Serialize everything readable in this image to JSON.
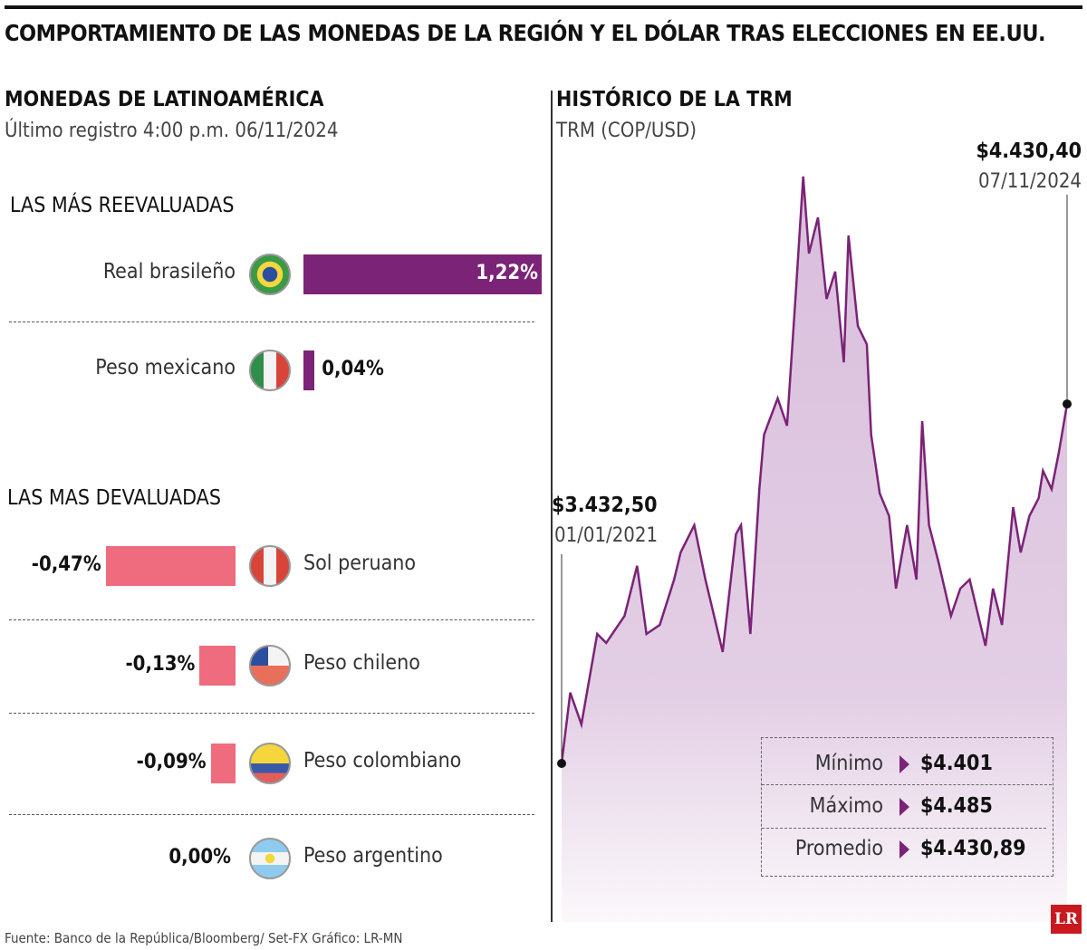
{
  "title": "COMPORTAMIENTO DE LAS MONEDAS DE LA REGIÓN Y EL DÓLAR TRAS ELECCIONES EN EE.UU.",
  "left": {
    "heading": "MONEDAS DE LATINOAMÉRICA",
    "subtitle": "Último registro 4:00 p.m. 06/11/2024",
    "section_up": "LAS MÁS REEVALUADAS",
    "section_down": "LAS MAS DEVALUADAS"
  },
  "colors": {
    "positive": "#7b2377",
    "negative": "#ee6c7e",
    "line": "#7b2377",
    "area": "#dcc2df"
  },
  "chart_data": [
    {
      "type": "bar",
      "orientation": "horizontal",
      "categories": [
        "Real brasileño",
        "Peso mexicano",
        "Sol peruano",
        "Peso chileno",
        "Peso colombiano",
        "Peso argentino"
      ],
      "values": [
        1.22,
        0.04,
        -0.47,
        -0.13,
        -0.09,
        0.0
      ],
      "labels": [
        "1,22%",
        "0,04%",
        "-0,47%",
        "-0,13%",
        "-0,09%",
        "0,00%"
      ],
      "flags": [
        "brazil",
        "mexico",
        "peru",
        "chile",
        "colombia",
        "argentina"
      ]
    },
    {
      "type": "area",
      "title": "HISTÓRICO DE LA TRM",
      "subtitle": "TRM (COP/USD)",
      "grid": false,
      "start": {
        "value": "$3.432,50",
        "date": "01/01/2021"
      },
      "end": {
        "value": "$4.430,40",
        "date": "07/11/2024"
      },
      "x": [
        "2021-01-01",
        "2021-01-25",
        "2021-02-25",
        "2021-04-10",
        "2021-05-05",
        "2021-06-25",
        "2021-07-30",
        "2021-08-25",
        "2021-10-01",
        "2021-11-10",
        "2021-11-28",
        "2022-01-05",
        "2022-02-05",
        "2022-03-25",
        "2022-05-01",
        "2022-05-15",
        "2022-06-10",
        "2022-07-05",
        "2022-07-18",
        "2022-08-25",
        "2022-09-20",
        "2022-10-15",
        "2022-11-04",
        "2022-11-20",
        "2022-12-15",
        "2023-01-08",
        "2023-02-01",
        "2023-02-25",
        "2023-03-10",
        "2023-04-05",
        "2023-04-30",
        "2023-05-12",
        "2023-06-05",
        "2023-07-01",
        "2023-07-20",
        "2023-08-20",
        "2023-09-15",
        "2023-10-01",
        "2023-10-20",
        "2023-11-15",
        "2023-12-20",
        "2024-01-15",
        "2024-02-10",
        "2024-03-25",
        "2024-04-15",
        "2024-05-10",
        "2024-06-10",
        "2024-07-01",
        "2024-07-25",
        "2024-08-20",
        "2024-09-01",
        "2024-09-25",
        "2024-10-15",
        "2024-11-07"
      ],
      "y": [
        3432.5,
        3629,
        3541,
        3792,
        3767,
        3842,
        3981,
        3792,
        3817,
        3943,
        4018,
        4094,
        3943,
        3742,
        4069,
        4094,
        3792,
        4194,
        4345,
        4446,
        4370,
        4747,
        5062,
        4848,
        4948,
        4722,
        4798,
        4546,
        4898,
        4647,
        4596,
        4345,
        4182,
        4119,
        3918,
        4094,
        3943,
        4383,
        4094,
        3993,
        3842,
        3918,
        3943,
        3759,
        3918,
        3817,
        4144,
        4018,
        4119,
        4169,
        4245,
        4194,
        4295,
        4430.4
      ]
    }
  ],
  "stats": [
    {
      "label": "Mínimo",
      "value": "$4.401"
    },
    {
      "label": "Máximo",
      "value": "$4.485"
    },
    {
      "label": "Promedio",
      "value": "$4.430,89"
    }
  ],
  "footer": "Fuente: Banco de la República/Bloomberg/ Set-FX  Gráfico: LR-MN",
  "logo": "LR"
}
